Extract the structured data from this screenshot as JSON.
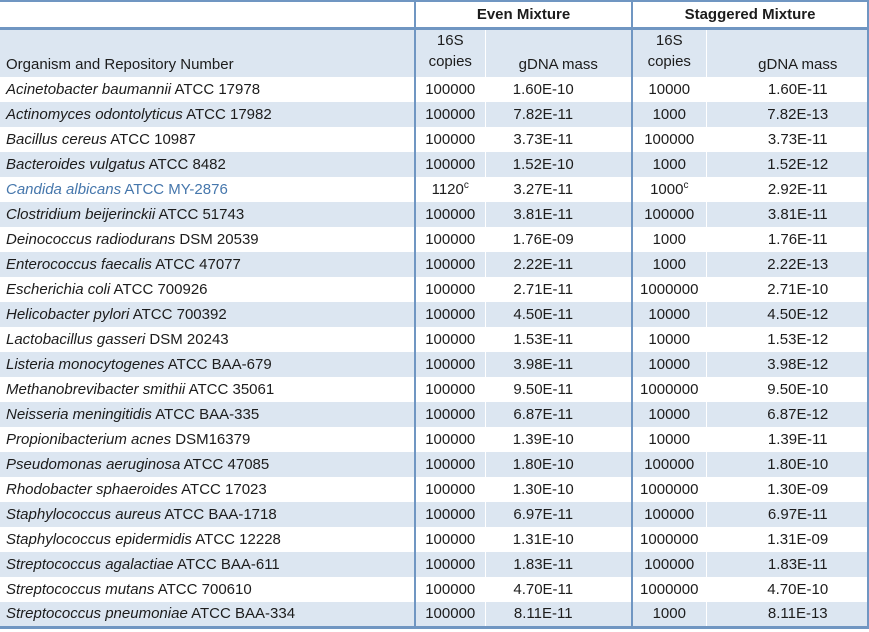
{
  "table": {
    "group_headers": {
      "even": "Even Mixture",
      "staggered": "Staggered Mixture"
    },
    "organism_header": "Organism and Repository Number",
    "subheaders": {
      "copies_top": "16S",
      "copies_bottom": "copies",
      "gdna": "gDNA mass"
    },
    "colors": {
      "border_blue": "#7096c2",
      "stripe_blue": "#dce6f1",
      "highlight_text": "#4677ac"
    },
    "rows": [
      {
        "name_italic": "Acinetobacter baumannii",
        "name_rest": "ATCC 17978",
        "even_copies": "100000",
        "even_sup": "",
        "even_gdna": "1.60E-10",
        "stag_copies": "10000",
        "stag_sup": "",
        "stag_gdna": "1.60E-11",
        "highlighted": false
      },
      {
        "name_italic": "Actinomyces odontolyticus",
        "name_rest": "ATCC 17982",
        "even_copies": "100000",
        "even_sup": "",
        "even_gdna": "7.82E-11",
        "stag_copies": "1000",
        "stag_sup": "",
        "stag_gdna": "7.82E-13",
        "highlighted": false
      },
      {
        "name_italic": "Bacillus cereus",
        "name_rest": "ATCC 10987",
        "even_copies": "100000",
        "even_sup": "",
        "even_gdna": "3.73E-11",
        "stag_copies": "100000",
        "stag_sup": "",
        "stag_gdna": "3.73E-11",
        "highlighted": false
      },
      {
        "name_italic": "Bacteroides vulgatus",
        "name_rest": "ATCC 8482",
        "even_copies": "100000",
        "even_sup": "",
        "even_gdna": "1.52E-10",
        "stag_copies": "1000",
        "stag_sup": "",
        "stag_gdna": "1.52E-12",
        "highlighted": false
      },
      {
        "name_italic": "Candida albicans",
        "name_rest": "ATCC MY-2876",
        "even_copies": "1120",
        "even_sup": "c",
        "even_gdna": "3.27E-11",
        "stag_copies": "1000",
        "stag_sup": "c",
        "stag_gdna": "2.92E-11",
        "highlighted": true
      },
      {
        "name_italic": "Clostridium beijerinckii",
        "name_rest": "ATCC 51743",
        "even_copies": "100000",
        "even_sup": "",
        "even_gdna": "3.81E-11",
        "stag_copies": "100000",
        "stag_sup": "",
        "stag_gdna": "3.81E-11",
        "highlighted": false
      },
      {
        "name_italic": "Deinococcus radiodurans",
        "name_rest": "DSM 20539",
        "even_copies": "100000",
        "even_sup": "",
        "even_gdna": "1.76E-09",
        "stag_copies": "1000",
        "stag_sup": "",
        "stag_gdna": "1.76E-11",
        "highlighted": false
      },
      {
        "name_italic": "Enterococcus faecalis",
        "name_rest": "ATCC 47077",
        "even_copies": "100000",
        "even_sup": "",
        "even_gdna": "2.22E-11",
        "stag_copies": "1000",
        "stag_sup": "",
        "stag_gdna": "2.22E-13",
        "highlighted": false
      },
      {
        "name_italic": "Escherichia coli",
        "name_rest": "ATCC 700926",
        "even_copies": "100000",
        "even_sup": "",
        "even_gdna": "2.71E-11",
        "stag_copies": "1000000",
        "stag_sup": "",
        "stag_gdna": "2.71E-10",
        "highlighted": false
      },
      {
        "name_italic": "Helicobacter pylori",
        "name_rest": "ATCC 700392",
        "even_copies": "100000",
        "even_sup": "",
        "even_gdna": "4.50E-11",
        "stag_copies": "10000",
        "stag_sup": "",
        "stag_gdna": "4.50E-12",
        "highlighted": false
      },
      {
        "name_italic": "Lactobacillus gasseri",
        "name_rest": "DSM 20243",
        "even_copies": "100000",
        "even_sup": "",
        "even_gdna": "1.53E-11",
        "stag_copies": "10000",
        "stag_sup": "",
        "stag_gdna": "1.53E-12",
        "highlighted": false
      },
      {
        "name_italic": "Listeria monocytogenes",
        "name_rest": "ATCC BAA-679",
        "even_copies": "100000",
        "even_sup": "",
        "even_gdna": "3.98E-11",
        "stag_copies": "10000",
        "stag_sup": "",
        "stag_gdna": "3.98E-12",
        "highlighted": false
      },
      {
        "name_italic": "Methanobrevibacter smithii",
        "name_rest": "ATCC 35061",
        "even_copies": "100000",
        "even_sup": "",
        "even_gdna": "9.50E-11",
        "stag_copies": "1000000",
        "stag_sup": "",
        "stag_gdna": "9.50E-10",
        "highlighted": false
      },
      {
        "name_italic": "Neisseria meningitidis",
        "name_rest": "ATCC BAA-335",
        "even_copies": "100000",
        "even_sup": "",
        "even_gdna": "6.87E-11",
        "stag_copies": "10000",
        "stag_sup": "",
        "stag_gdna": "6.87E-12",
        "highlighted": false
      },
      {
        "name_italic": "Propionibacterium acnes",
        "name_rest": "DSM16379",
        "even_copies": "100000",
        "even_sup": "",
        "even_gdna": "1.39E-10",
        "stag_copies": "10000",
        "stag_sup": "",
        "stag_gdna": "1.39E-11",
        "highlighted": false
      },
      {
        "name_italic": "Pseudomonas aeruginosa",
        "name_rest": "ATCC 47085",
        "even_copies": "100000",
        "even_sup": "",
        "even_gdna": "1.80E-10",
        "stag_copies": "100000",
        "stag_sup": "",
        "stag_gdna": "1.80E-10",
        "highlighted": false
      },
      {
        "name_italic": "Rhodobacter sphaeroides",
        "name_rest": "ATCC 17023",
        "even_copies": "100000",
        "even_sup": "",
        "even_gdna": "1.30E-10",
        "stag_copies": "1000000",
        "stag_sup": "",
        "stag_gdna": "1.30E-09",
        "highlighted": false
      },
      {
        "name_italic": "Staphylococcus aureus",
        "name_rest": "ATCC BAA-1718",
        "even_copies": "100000",
        "even_sup": "",
        "even_gdna": "6.97E-11",
        "stag_copies": "100000",
        "stag_sup": "",
        "stag_gdna": "6.97E-11",
        "highlighted": false
      },
      {
        "name_italic": "Staphylococcus epidermidis",
        "name_rest": "ATCC 12228",
        "even_copies": "100000",
        "even_sup": "",
        "even_gdna": "1.31E-10",
        "stag_copies": "1000000",
        "stag_sup": "",
        "stag_gdna": "1.31E-09",
        "highlighted": false
      },
      {
        "name_italic": "Streptococcus agalactiae",
        "name_rest": "ATCC BAA-611",
        "even_copies": "100000",
        "even_sup": "",
        "even_gdna": "1.83E-11",
        "stag_copies": "100000",
        "stag_sup": "",
        "stag_gdna": "1.83E-11",
        "highlighted": false
      },
      {
        "name_italic": "Streptococcus mutans",
        "name_rest": "ATCC 700610",
        "even_copies": "100000",
        "even_sup": "",
        "even_gdna": "4.70E-11",
        "stag_copies": "1000000",
        "stag_sup": "",
        "stag_gdna": "4.70E-10",
        "highlighted": false
      },
      {
        "name_italic": "Streptococcus pneumoniae",
        "name_rest": "ATCC BAA-334",
        "even_copies": "100000",
        "even_sup": "",
        "even_gdna": "8.11E-11",
        "stag_copies": "1000",
        "stag_sup": "",
        "stag_gdna": "8.11E-13",
        "highlighted": false
      }
    ]
  }
}
